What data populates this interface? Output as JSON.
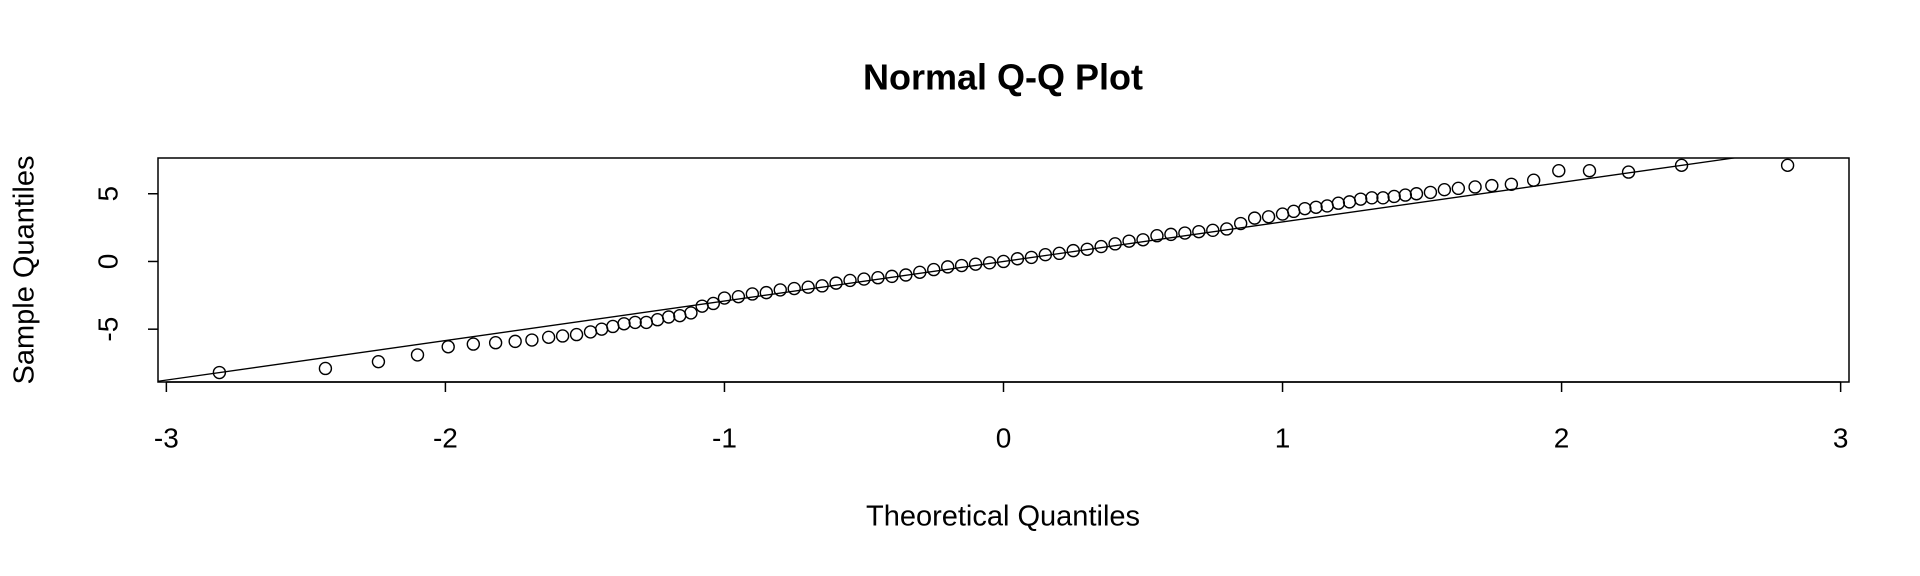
{
  "chart_data": {
    "type": "scatter",
    "title": "Normal Q-Q Plot",
    "x_label": "Theoretical Quantiles",
    "y_label": "Sample Quantiles",
    "xlim": [
      -3.03,
      3.03
    ],
    "ylim": [
      -8.9,
      7.64
    ],
    "xticks": [
      -3,
      -2,
      -1,
      0,
      1,
      2,
      3
    ],
    "yticks": [
      -5,
      0,
      5
    ],
    "x": [
      -2.81,
      -2.43,
      -2.24,
      -2.1,
      -1.99,
      -1.9,
      -1.82,
      -1.75,
      -1.69,
      -1.63,
      -1.58,
      -1.53,
      -1.48,
      -1.44,
      -1.4,
      -1.36,
      -1.32,
      -1.28,
      -1.24,
      -1.2,
      -1.16,
      -1.12,
      -1.08,
      -1.04,
      -1.0,
      -0.95,
      -0.9,
      -0.85,
      -0.8,
      -0.75,
      -0.7,
      -0.65,
      -0.6,
      -0.55,
      -0.5,
      -0.45,
      -0.4,
      -0.35,
      -0.3,
      -0.25,
      -0.2,
      -0.15,
      -0.1,
      -0.05,
      0,
      0.05,
      0.1,
      0.15,
      0.2,
      0.25,
      0.3,
      0.35,
      0.4,
      0.45,
      0.5,
      0.55,
      0.6,
      0.65,
      0.7,
      0.75,
      0.8,
      0.85,
      0.9,
      0.95,
      1.0,
      1.04,
      1.08,
      1.12,
      1.16,
      1.2,
      1.24,
      1.28,
      1.32,
      1.36,
      1.4,
      1.44,
      1.48,
      1.53,
      1.58,
      1.63,
      1.69,
      1.75,
      1.82,
      1.9,
      1.99,
      2.1,
      2.24,
      2.43,
      2.81
    ],
    "values": [
      -8.2,
      -7.9,
      -7.4,
      -6.9,
      -6.3,
      -6.1,
      -6.0,
      -5.9,
      -5.8,
      -5.6,
      -5.5,
      -5.4,
      -5.2,
      -5.0,
      -4.8,
      -4.6,
      -4.5,
      -4.5,
      -4.3,
      -4.1,
      -4.0,
      -3.8,
      -3.3,
      -3.1,
      -2.7,
      -2.6,
      -2.4,
      -2.3,
      -2.1,
      -2.0,
      -1.9,
      -1.8,
      -1.6,
      -1.4,
      -1.3,
      -1.2,
      -1.1,
      -1.0,
      -0.8,
      -0.6,
      -0.4,
      -0.3,
      -0.2,
      -0.1,
      0.0,
      0.2,
      0.3,
      0.5,
      0.6,
      0.8,
      0.9,
      1.1,
      1.3,
      1.5,
      1.6,
      1.9,
      2.0,
      2.1,
      2.2,
      2.3,
      2.4,
      2.8,
      3.2,
      3.3,
      3.5,
      3.7,
      3.9,
      4.0,
      4.1,
      4.3,
      4.4,
      4.6,
      4.7,
      4.7,
      4.8,
      4.9,
      5.0,
      5.1,
      5.3,
      5.4,
      5.5,
      5.6,
      5.7,
      6.0,
      6.7,
      6.7,
      6.6,
      7.1,
      7.1
    ],
    "reference_line": {
      "intercept": 0.0,
      "slope": 2.92
    },
    "color": "#000000"
  }
}
